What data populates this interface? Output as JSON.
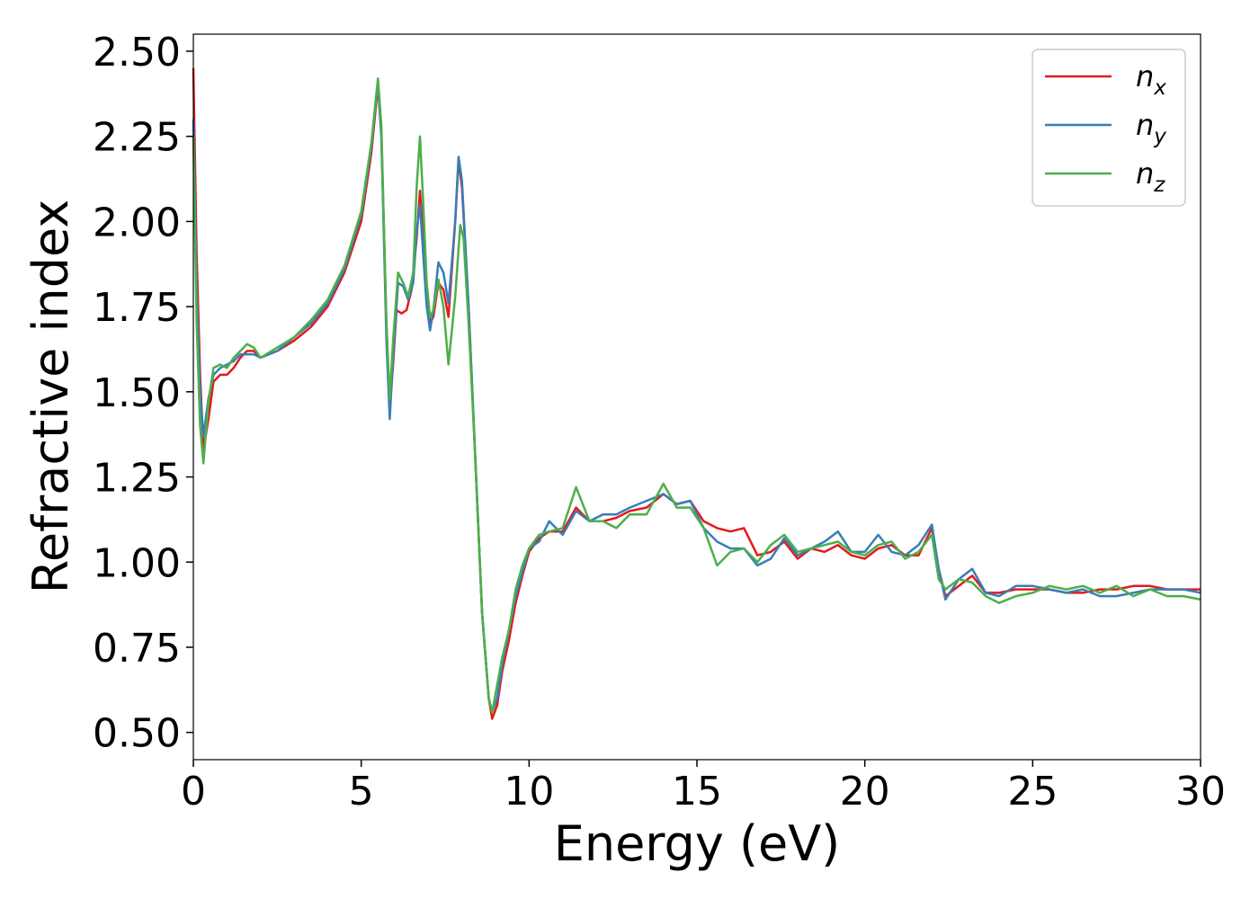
{
  "chart_data": {
    "type": "line",
    "xlabel": "Energy (eV)",
    "ylabel": "Refractive index",
    "xlim": [
      0,
      30
    ],
    "ylim": [
      0.42,
      2.55
    ],
    "xticks": [
      "0",
      "5",
      "10",
      "15",
      "20",
      "25",
      "30"
    ],
    "yticks": [
      "0.50",
      "0.75",
      "1.00",
      "1.25",
      "1.50",
      "1.75",
      "2.00",
      "2.25",
      "2.50"
    ],
    "grid": false,
    "legend_position": "top-right",
    "series": [
      {
        "name": "n",
        "subscript": "x",
        "color": "#e41a1c",
        "points": [
          [
            0,
            2.45
          ],
          [
            0.1,
            1.9
          ],
          [
            0.2,
            1.55
          ],
          [
            0.3,
            1.33
          ],
          [
            0.45,
            1.42
          ],
          [
            0.6,
            1.53
          ],
          [
            0.8,
            1.55
          ],
          [
            1.0,
            1.55
          ],
          [
            1.2,
            1.57
          ],
          [
            1.4,
            1.6
          ],
          [
            1.6,
            1.62
          ],
          [
            1.8,
            1.62
          ],
          [
            2.0,
            1.6
          ],
          [
            2.5,
            1.62
          ],
          [
            3.0,
            1.65
          ],
          [
            3.5,
            1.69
          ],
          [
            4.0,
            1.75
          ],
          [
            4.5,
            1.85
          ],
          [
            5.0,
            2.0
          ],
          [
            5.3,
            2.2
          ],
          [
            5.5,
            2.4
          ],
          [
            5.6,
            2.25
          ],
          [
            5.75,
            1.7
          ],
          [
            5.85,
            1.45
          ],
          [
            5.95,
            1.58
          ],
          [
            6.05,
            1.74
          ],
          [
            6.2,
            1.73
          ],
          [
            6.35,
            1.74
          ],
          [
            6.5,
            1.8
          ],
          [
            6.65,
            1.95
          ],
          [
            6.75,
            2.09
          ],
          [
            6.85,
            1.95
          ],
          [
            6.95,
            1.8
          ],
          [
            7.05,
            1.7
          ],
          [
            7.15,
            1.72
          ],
          [
            7.3,
            1.82
          ],
          [
            7.45,
            1.8
          ],
          [
            7.6,
            1.72
          ],
          [
            7.8,
            2.0
          ],
          [
            7.9,
            2.18
          ],
          [
            8.0,
            2.1
          ],
          [
            8.2,
            1.75
          ],
          [
            8.4,
            1.3
          ],
          [
            8.6,
            0.85
          ],
          [
            8.8,
            0.6
          ],
          [
            8.9,
            0.54
          ],
          [
            9.05,
            0.58
          ],
          [
            9.2,
            0.68
          ],
          [
            9.4,
            0.77
          ],
          [
            9.6,
            0.88
          ],
          [
            9.8,
            0.96
          ],
          [
            10.0,
            1.03
          ],
          [
            10.3,
            1.07
          ],
          [
            10.6,
            1.09
          ],
          [
            11.0,
            1.09
          ],
          [
            11.4,
            1.16
          ],
          [
            11.8,
            1.12
          ],
          [
            12.2,
            1.12
          ],
          [
            12.6,
            1.13
          ],
          [
            13.0,
            1.15
          ],
          [
            13.5,
            1.16
          ],
          [
            14.0,
            1.2
          ],
          [
            14.4,
            1.17
          ],
          [
            14.8,
            1.18
          ],
          [
            15.2,
            1.12
          ],
          [
            15.6,
            1.1
          ],
          [
            16.0,
            1.09
          ],
          [
            16.4,
            1.1
          ],
          [
            16.8,
            1.02
          ],
          [
            17.2,
            1.03
          ],
          [
            17.6,
            1.06
          ],
          [
            18.0,
            1.01
          ],
          [
            18.4,
            1.04
          ],
          [
            18.8,
            1.03
          ],
          [
            19.2,
            1.05
          ],
          [
            19.6,
            1.02
          ],
          [
            20.0,
            1.01
          ],
          [
            20.4,
            1.04
          ],
          [
            20.8,
            1.05
          ],
          [
            21.2,
            1.02
          ],
          [
            21.6,
            1.02
          ],
          [
            22.0,
            1.1
          ],
          [
            22.2,
            0.98
          ],
          [
            22.4,
            0.9
          ],
          [
            22.8,
            0.93
          ],
          [
            23.2,
            0.96
          ],
          [
            23.6,
            0.91
          ],
          [
            24.0,
            0.91
          ],
          [
            24.5,
            0.92
          ],
          [
            25.0,
            0.92
          ],
          [
            25.5,
            0.92
          ],
          [
            26.0,
            0.91
          ],
          [
            26.5,
            0.91
          ],
          [
            27.0,
            0.92
          ],
          [
            27.5,
            0.92
          ],
          [
            28.0,
            0.93
          ],
          [
            28.5,
            0.93
          ],
          [
            29.0,
            0.92
          ],
          [
            29.5,
            0.92
          ],
          [
            30.0,
            0.92
          ]
        ]
      },
      {
        "name": "n",
        "subscript": "y",
        "color": "#377eb8",
        "points": [
          [
            0,
            2.3
          ],
          [
            0.1,
            1.8
          ],
          [
            0.2,
            1.5
          ],
          [
            0.3,
            1.37
          ],
          [
            0.45,
            1.48
          ],
          [
            0.6,
            1.55
          ],
          [
            0.8,
            1.57
          ],
          [
            1.0,
            1.58
          ],
          [
            1.2,
            1.59
          ],
          [
            1.4,
            1.61
          ],
          [
            1.6,
            1.61
          ],
          [
            1.8,
            1.61
          ],
          [
            2.0,
            1.6
          ],
          [
            2.5,
            1.62
          ],
          [
            3.0,
            1.66
          ],
          [
            3.5,
            1.7
          ],
          [
            4.0,
            1.76
          ],
          [
            4.5,
            1.86
          ],
          [
            5.0,
            2.02
          ],
          [
            5.3,
            2.22
          ],
          [
            5.5,
            2.41
          ],
          [
            5.6,
            2.25
          ],
          [
            5.75,
            1.65
          ],
          [
            5.85,
            1.42
          ],
          [
            5.95,
            1.6
          ],
          [
            6.1,
            1.82
          ],
          [
            6.25,
            1.81
          ],
          [
            6.4,
            1.77
          ],
          [
            6.55,
            1.82
          ],
          [
            6.65,
            1.97
          ],
          [
            6.75,
            2.05
          ],
          [
            6.85,
            1.9
          ],
          [
            6.95,
            1.75
          ],
          [
            7.05,
            1.68
          ],
          [
            7.15,
            1.74
          ],
          [
            7.3,
            1.88
          ],
          [
            7.45,
            1.85
          ],
          [
            7.6,
            1.76
          ],
          [
            7.8,
            2.0
          ],
          [
            7.9,
            2.19
          ],
          [
            8.0,
            2.12
          ],
          [
            8.2,
            1.75
          ],
          [
            8.4,
            1.3
          ],
          [
            8.6,
            0.85
          ],
          [
            8.8,
            0.6
          ],
          [
            8.9,
            0.56
          ],
          [
            9.05,
            0.6
          ],
          [
            9.2,
            0.7
          ],
          [
            9.4,
            0.8
          ],
          [
            9.6,
            0.9
          ],
          [
            9.8,
            0.97
          ],
          [
            10.0,
            1.04
          ],
          [
            10.3,
            1.06
          ],
          [
            10.6,
            1.12
          ],
          [
            11.0,
            1.08
          ],
          [
            11.4,
            1.15
          ],
          [
            11.8,
            1.12
          ],
          [
            12.2,
            1.14
          ],
          [
            12.6,
            1.14
          ],
          [
            13.0,
            1.16
          ],
          [
            13.5,
            1.18
          ],
          [
            14.0,
            1.2
          ],
          [
            14.4,
            1.17
          ],
          [
            14.8,
            1.18
          ],
          [
            15.2,
            1.1
          ],
          [
            15.6,
            1.06
          ],
          [
            16.0,
            1.04
          ],
          [
            16.4,
            1.04
          ],
          [
            16.8,
            0.99
          ],
          [
            17.2,
            1.01
          ],
          [
            17.6,
            1.07
          ],
          [
            18.0,
            1.02
          ],
          [
            18.4,
            1.04
          ],
          [
            18.8,
            1.06
          ],
          [
            19.2,
            1.09
          ],
          [
            19.6,
            1.03
          ],
          [
            20.0,
            1.03
          ],
          [
            20.4,
            1.08
          ],
          [
            20.8,
            1.03
          ],
          [
            21.2,
            1.02
          ],
          [
            21.6,
            1.05
          ],
          [
            22.0,
            1.11
          ],
          [
            22.2,
            0.98
          ],
          [
            22.4,
            0.89
          ],
          [
            22.8,
            0.95
          ],
          [
            23.2,
            0.98
          ],
          [
            23.6,
            0.91
          ],
          [
            24.0,
            0.9
          ],
          [
            24.5,
            0.93
          ],
          [
            25.0,
            0.93
          ],
          [
            25.5,
            0.92
          ],
          [
            26.0,
            0.91
          ],
          [
            26.5,
            0.92
          ],
          [
            27.0,
            0.9
          ],
          [
            27.5,
            0.9
          ],
          [
            28.0,
            0.91
          ],
          [
            28.5,
            0.92
          ],
          [
            29.0,
            0.92
          ],
          [
            29.5,
            0.92
          ],
          [
            30.0,
            0.91
          ]
        ]
      },
      {
        "name": "n",
        "subscript": "z",
        "color": "#4daf4a",
        "points": [
          [
            0,
            2.25
          ],
          [
            0.1,
            1.7
          ],
          [
            0.2,
            1.4
          ],
          [
            0.3,
            1.29
          ],
          [
            0.45,
            1.47
          ],
          [
            0.6,
            1.57
          ],
          [
            0.8,
            1.58
          ],
          [
            1.0,
            1.57
          ],
          [
            1.2,
            1.6
          ],
          [
            1.4,
            1.62
          ],
          [
            1.6,
            1.64
          ],
          [
            1.8,
            1.63
          ],
          [
            2.0,
            1.6
          ],
          [
            2.5,
            1.63
          ],
          [
            3.0,
            1.66
          ],
          [
            3.5,
            1.71
          ],
          [
            4.0,
            1.77
          ],
          [
            4.5,
            1.87
          ],
          [
            5.0,
            2.03
          ],
          [
            5.3,
            2.23
          ],
          [
            5.5,
            2.42
          ],
          [
            5.6,
            2.28
          ],
          [
            5.75,
            1.7
          ],
          [
            5.85,
            1.48
          ],
          [
            5.95,
            1.65
          ],
          [
            6.1,
            1.85
          ],
          [
            6.25,
            1.82
          ],
          [
            6.4,
            1.78
          ],
          [
            6.55,
            1.85
          ],
          [
            6.65,
            2.1
          ],
          [
            6.75,
            2.25
          ],
          [
            6.85,
            2.05
          ],
          [
            6.95,
            1.82
          ],
          [
            7.05,
            1.72
          ],
          [
            7.15,
            1.74
          ],
          [
            7.3,
            1.83
          ],
          [
            7.45,
            1.75
          ],
          [
            7.6,
            1.58
          ],
          [
            7.8,
            1.78
          ],
          [
            7.95,
            1.99
          ],
          [
            8.05,
            1.95
          ],
          [
            8.2,
            1.7
          ],
          [
            8.4,
            1.3
          ],
          [
            8.6,
            0.85
          ],
          [
            8.8,
            0.6
          ],
          [
            8.9,
            0.56
          ],
          [
            9.05,
            0.64
          ],
          [
            9.2,
            0.72
          ],
          [
            9.4,
            0.8
          ],
          [
            9.6,
            0.92
          ],
          [
            9.8,
            0.99
          ],
          [
            10.0,
            1.04
          ],
          [
            10.3,
            1.08
          ],
          [
            10.6,
            1.09
          ],
          [
            11.0,
            1.1
          ],
          [
            11.4,
            1.22
          ],
          [
            11.8,
            1.12
          ],
          [
            12.2,
            1.12
          ],
          [
            12.6,
            1.1
          ],
          [
            13.0,
            1.14
          ],
          [
            13.5,
            1.14
          ],
          [
            14.0,
            1.23
          ],
          [
            14.4,
            1.16
          ],
          [
            14.8,
            1.16
          ],
          [
            15.2,
            1.1
          ],
          [
            15.6,
            0.99
          ],
          [
            16.0,
            1.03
          ],
          [
            16.4,
            1.04
          ],
          [
            16.8,
            1.0
          ],
          [
            17.2,
            1.05
          ],
          [
            17.6,
            1.08
          ],
          [
            18.0,
            1.03
          ],
          [
            18.4,
            1.04
          ],
          [
            18.8,
            1.05
          ],
          [
            19.2,
            1.06
          ],
          [
            19.6,
            1.03
          ],
          [
            20.0,
            1.02
          ],
          [
            20.4,
            1.05
          ],
          [
            20.8,
            1.06
          ],
          [
            21.2,
            1.01
          ],
          [
            21.6,
            1.03
          ],
          [
            22.0,
            1.08
          ],
          [
            22.2,
            0.95
          ],
          [
            22.4,
            0.92
          ],
          [
            22.8,
            0.95
          ],
          [
            23.2,
            0.94
          ],
          [
            23.6,
            0.9
          ],
          [
            24.0,
            0.88
          ],
          [
            24.5,
            0.9
          ],
          [
            25.0,
            0.91
          ],
          [
            25.5,
            0.93
          ],
          [
            26.0,
            0.92
          ],
          [
            26.5,
            0.93
          ],
          [
            27.0,
            0.91
          ],
          [
            27.5,
            0.93
          ],
          [
            28.0,
            0.9
          ],
          [
            28.5,
            0.92
          ],
          [
            29.0,
            0.9
          ],
          [
            29.5,
            0.9
          ],
          [
            30.0,
            0.89
          ]
        ]
      }
    ]
  }
}
